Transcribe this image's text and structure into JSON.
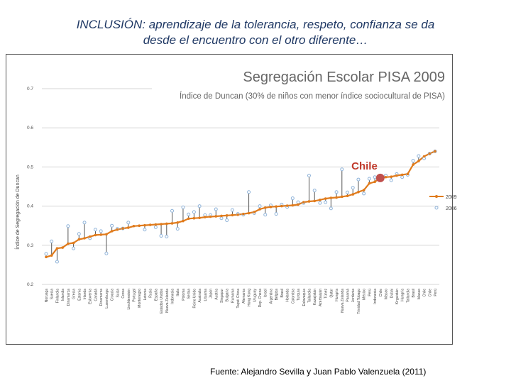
{
  "slide": {
    "title_line1": "INCLUSIÓN: aprendizaje de la tolerancia, respeto, confianza se da",
    "title_line2": "desde el encuentro con el otro diferente…",
    "source": "Fuente: Alejandro Sevilla y Juan Pablo Valenzuela (2011)"
  },
  "colors": {
    "series2009": "#e07b1c",
    "series2006": "#8fb3d9",
    "chile_marker": "#c0504d",
    "chile_label": "#c0392b",
    "title_text": "#1f3864"
  },
  "chart_data": {
    "type": "line",
    "title": "Segregación Escolar PISA 2009",
    "subtitle": "Índice de Duncan (30% de niños con menor índice sociocultural de PISA)",
    "ylabel": "Índice de Segregación de Duncan",
    "ylim": [
      0.2,
      0.7
    ],
    "yticks": [
      0.2,
      0.3,
      0.4,
      0.5,
      0.6,
      0.7
    ],
    "ytick_labels": [
      "0.2",
      "0.3",
      "0.4",
      "0.5",
      "0.6",
      "0.7"
    ],
    "grid": true,
    "legend_position": "right",
    "annotation": "Chile",
    "annotation_index": 61,
    "categories": [
      "Noruega",
      "Suecia",
      "Finlandia",
      "Islandia",
      "Dinamarca",
      "Grecia",
      "Estonia",
      "Irlanda",
      "Eslovenia",
      "Canadá",
      "Dinamarca",
      "Luxemburgo",
      "Croacia",
      "Suiza",
      "Corea",
      "Liechtenstein",
      "Portugal",
      "Montenegro",
      "Letonia",
      "Rusia",
      "España",
      "Estados Unidos",
      "Nueva Zelanda",
      "Indonesia",
      "Italia",
      "Polonia",
      "Serbia",
      "Reino Unido",
      "Australia",
      "Lituania",
      "Japón",
      "Austria",
      "Singapur",
      "Bulgaria",
      "Rumania",
      "Taipéi China",
      "Alemania",
      "Hong Kong",
      "Uruguay",
      "Rep. Checa",
      "Israel",
      "Argentina",
      "Bélgica",
      "Brasil",
      "Holanda",
      "Colombia",
      "Turquía",
      "Eslovaquia",
      "Tailandia",
      "Kazajistán",
      "Azerbaiyán",
      "Túnez",
      "Qatar",
      "Hungría",
      "Nueva Zelanda",
      "Panamá",
      "Jordania",
      "Trinidad Tobago",
      "México",
      "Perú",
      "Indonesia",
      "Chile",
      "Macao",
      "Dubai",
      "Kirguistán",
      "Hungría",
      "Tailandia",
      "Brasil",
      "Macao",
      "Chile",
      "Chile",
      "Perú"
    ],
    "series": [
      {
        "name": "2009",
        "values": [
          0.27,
          0.274,
          0.292,
          0.294,
          0.304,
          0.306,
          0.315,
          0.318,
          0.322,
          0.326,
          0.327,
          0.328,
          0.336,
          0.34,
          0.343,
          0.345,
          0.349,
          0.35,
          0.351,
          0.352,
          0.353,
          0.354,
          0.355,
          0.356,
          0.358,
          0.362,
          0.368,
          0.369,
          0.37,
          0.372,
          0.373,
          0.374,
          0.375,
          0.376,
          0.377,
          0.378,
          0.38,
          0.382,
          0.385,
          0.392,
          0.396,
          0.398,
          0.399,
          0.4,
          0.401,
          0.402,
          0.404,
          0.41,
          0.412,
          0.413,
          0.416,
          0.419,
          0.421,
          0.422,
          0.424,
          0.426,
          0.43,
          0.436,
          0.441,
          0.458,
          0.462,
          0.472,
          0.474,
          0.475,
          0.478,
          0.48,
          0.482,
          0.506,
          0.515,
          0.527,
          0.534,
          0.54
        ]
      },
      {
        "name": "2006",
        "values": [
          0.278,
          0.31,
          0.258,
          null,
          0.349,
          0.292,
          0.329,
          0.358,
          0.318,
          0.34,
          0.336,
          0.279,
          0.35,
          0.342,
          0.343,
          0.358,
          null,
          null,
          0.34,
          null,
          0.346,
          0.324,
          0.322,
          0.388,
          0.342,
          0.397,
          0.379,
          0.385,
          0.4,
          0.377,
          0.377,
          0.392,
          0.369,
          0.364,
          0.39,
          0.38,
          0.378,
          0.436,
          0.382,
          0.4,
          0.378,
          0.402,
          0.38,
          0.404,
          0.398,
          0.42,
          0.41,
          0.408,
          0.478,
          0.44,
          0.408,
          0.41,
          0.394,
          0.436,
          0.494,
          0.435,
          0.447,
          0.468,
          0.432,
          0.47,
          0.474,
          0.47,
          0.478,
          0.466,
          0.482,
          0.474,
          0.48,
          0.516,
          0.528,
          0.522,
          0.534,
          0.54
        ]
      }
    ]
  }
}
